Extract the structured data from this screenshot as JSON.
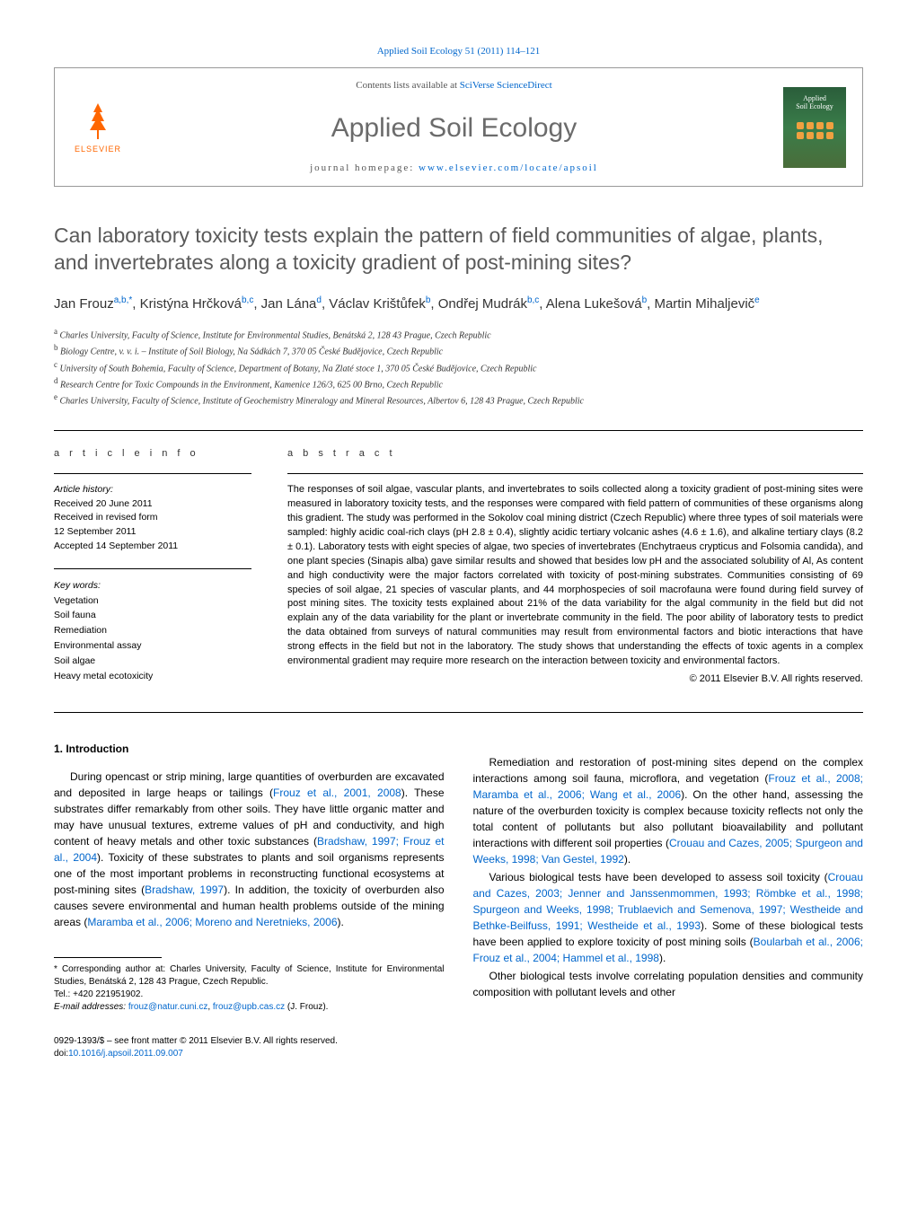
{
  "header": {
    "citation_line": "Applied Soil Ecology 51 (2011) 114–121",
    "contents_prefix": "Contents lists available at ",
    "contents_link": "SciVerse ScienceDirect",
    "journal_title": "Applied Soil Ecology",
    "homepage_prefix": "journal homepage: ",
    "homepage_url": "www.elsevier.com/locate/apsoil",
    "publisher_name": "ELSEVIER",
    "cover_text_1": "Applied",
    "cover_text_2": "Soil Ecology"
  },
  "article": {
    "title": "Can laboratory toxicity tests explain the pattern of field communities of algae, plants, and invertebrates along a toxicity gradient of post-mining sites?"
  },
  "authors_html": "Jan Frouz<sup>a,b,*</sup>, Kristýna Hrčková<sup>b,c</sup>, Jan Lána<sup>d</sup>, Václav Krištůfek<sup>b</sup>, Ondřej Mudrák<sup>b,c</sup>, Alena Lukešová<sup>b</sup>, Martin Mihaljevič<sup>e</sup>",
  "affiliations": [
    {
      "sup": "a",
      "text": "Charles University, Faculty of Science, Institute for Environmental Studies, Benátská 2, 128 43 Prague, Czech Republic"
    },
    {
      "sup": "b",
      "text": "Biology Centre, v. v. i. – Institute of Soil Biology, Na Sádkách 7, 370 05 České Budějovice, Czech Republic"
    },
    {
      "sup": "c",
      "text": "University of South Bohemia, Faculty of Science, Department of Botany, Na Zlaté stoce 1, 370 05 České Budějovice, Czech Republic"
    },
    {
      "sup": "d",
      "text": "Research Centre for Toxic Compounds in the Environment, Kamenice 126/3, 625 00 Brno, Czech Republic"
    },
    {
      "sup": "e",
      "text": "Charles University, Faculty of Science, Institute of Geochemistry Mineralogy and Mineral Resources, Albertov 6, 128 43 Prague, Czech Republic"
    }
  ],
  "info": {
    "label": "a r t i c l e   i n f o",
    "history_title": "Article history:",
    "history": [
      "Received 20 June 2011",
      "Received in revised form",
      "12 September 2011",
      "Accepted 14 September 2011"
    ],
    "keywords_title": "Key words:",
    "keywords": [
      "Vegetation",
      "Soil fauna",
      "Remediation",
      "Environmental assay",
      "Soil algae",
      "Heavy metal ecotoxicity"
    ]
  },
  "abstract": {
    "label": "a b s t r a c t",
    "text": "The responses of soil algae, vascular plants, and invertebrates to soils collected along a toxicity gradient of post-mining sites were measured in laboratory toxicity tests, and the responses were compared with field pattern of communities of these organisms along this gradient. The study was performed in the Sokolov coal mining district (Czech Republic) where three types of soil materials were sampled: highly acidic coal-rich clays (pH 2.8 ± 0.4), slightly acidic tertiary volcanic ashes (4.6 ± 1.6), and alkaline tertiary clays (8.2 ± 0.1). Laboratory tests with eight species of algae, two species of invertebrates (Enchytraeus crypticus and Folsomia candida), and one plant species (Sinapis alba) gave similar results and showed that besides low pH and the associated solubility of Al, As content and high conductivity were the major factors correlated with toxicity of post-mining substrates. Communities consisting of 69 species of soil algae, 21 species of vascular plants, and 44 morphospecies of soil macrofauna were found during field survey of post mining sites. The toxicity tests explained about 21% of the data variability for the algal community in the field but did not explain any of the data variability for the plant or invertebrate community in the field. The poor ability of laboratory tests to predict the data obtained from surveys of natural communities may result from environmental factors and biotic interactions that have strong effects in the field but not in the laboratory. The study shows that understanding the effects of toxic agents in a complex environmental gradient may require more research on the interaction between toxicity and environmental factors.",
    "copyright": "© 2011 Elsevier B.V. All rights reserved."
  },
  "body": {
    "heading": "1. Introduction",
    "col1": {
      "p1_pre": "During opencast or strip mining, large quantities of overburden are excavated and deposited in large heaps or tailings (",
      "p1_link1": "Frouz et al., 2001, 2008",
      "p1_mid1": "). These substrates differ remarkably from other soils. They have little organic matter and may have unusual textures, extreme values of pH and conductivity, and high content of heavy metals and other toxic substances (",
      "p1_link2": "Bradshaw, 1997; Frouz et al., 2004",
      "p1_mid2": "). Toxicity of these substrates to plants and soil organisms represents one of the most important problems in reconstructing functional ecosystems at post-mining sites (",
      "p1_link3": "Bradshaw, 1997",
      "p1_end": "). In addition, the toxicity of overburden also causes severe"
    },
    "col2": {
      "p1_pre": "environmental and human health problems outside of the mining areas (",
      "p1_link1": "Maramba et al., 2006; Moreno and Neretnieks, 2006",
      "p1_end": ").",
      "p2_pre": "Remediation and restoration of post-mining sites depend on the complex interactions among soil fauna, microflora, and vegetation (",
      "p2_link1": "Frouz et al., 2008; Maramba et al., 2006; Wang et al., 2006",
      "p2_mid1": "). On the other hand, assessing the nature of the overburden toxicity is complex because toxicity reflects not only the total content of pollutants but also pollutant bioavailability and pollutant interactions with different soil properties (",
      "p2_link2": "Crouau and Cazes, 2005; Spurgeon and Weeks, 1998; Van Gestel, 1992",
      "p2_end": ").",
      "p3_pre": "Various biological tests have been developed to assess soil toxicity (",
      "p3_link1": "Crouau and Cazes, 2003; Jenner and Janssenmommen, 1993; Römbke et al., 1998; Spurgeon and Weeks, 1998; Trublaevich and Semenova, 1997; Westheide and Bethke-Beilfuss, 1991; Westheide et al., 1993",
      "p3_mid1": "). Some of these biological tests have been applied to explore toxicity of post mining soils (",
      "p3_link2": "Boularbah et al., 2006; Frouz et al., 2004; Hammel et al., 1998",
      "p3_end": ").",
      "p4": "Other biological tests involve correlating population densities and community composition with pollutant levels and other"
    }
  },
  "footnotes": {
    "corr_label": "* Corresponding author at: Charles University, Faculty of Science, Institute for Environmental Studies, Benátská 2, 128 43 Prague, Czech Republic.",
    "tel": "Tel.: +420 221951902.",
    "email_label": "E-mail addresses: ",
    "email1": "frouz@natur.cuni.cz",
    "email_sep": ", ",
    "email2": "frouz@upb.cas.cz",
    "email_who": " (J. Frouz)."
  },
  "footer": {
    "issn": "0929-1393/$ – see front matter © 2011 Elsevier B.V. All rights reserved.",
    "doi_prefix": "doi:",
    "doi": "10.1016/j.apsoil.2011.09.007"
  },
  "colors": {
    "link": "#0066cc",
    "title_gray": "#5a5a5a",
    "publisher_orange": "#ff6600",
    "cover_green_top": "#2a5d3a",
    "cover_green_bot": "#4a6d3a",
    "cover_accent": "#f0a040"
  },
  "fonts": {
    "body_family": "Arial, sans-serif",
    "title_size_pt": 17,
    "journal_title_size_pt": 22,
    "body_size_pt": 9,
    "abstract_size_pt": 8,
    "footnote_size_pt": 7
  }
}
